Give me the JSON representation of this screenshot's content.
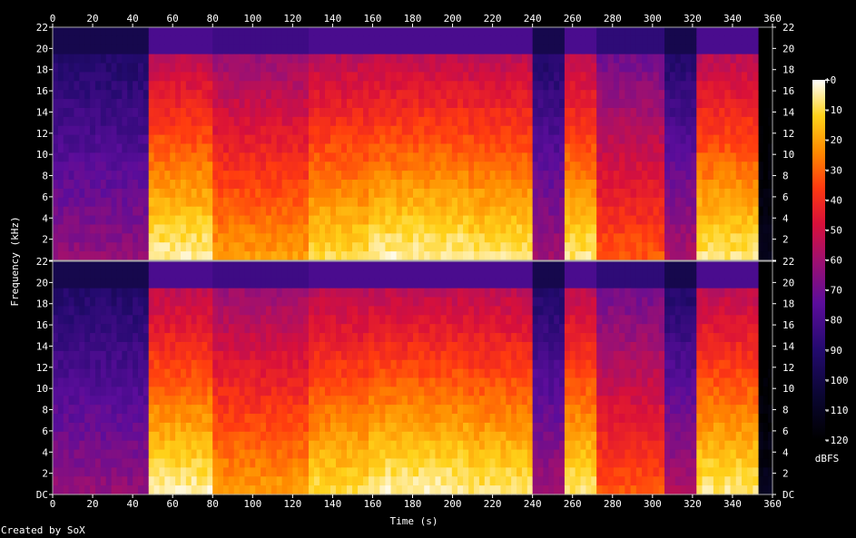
{
  "chart_data": {
    "type": "heatmap",
    "title": "",
    "xlabel": "Time (s)",
    "ylabel": "Frequency (kHz)",
    "xlim": [
      0,
      360
    ],
    "ylim": [
      0,
      22
    ],
    "x_ticks": [
      "0",
      "20",
      "40",
      "60",
      "80",
      "100",
      "120",
      "140",
      "160",
      "180",
      "200",
      "220",
      "240",
      "260",
      "280",
      "300",
      "320",
      "340",
      "360"
    ],
    "y_ticks": [
      "DC",
      "2",
      "4",
      "6",
      "8",
      "10",
      "12",
      "14",
      "16",
      "18",
      "20",
      "22"
    ],
    "channels": 2,
    "colorbar": {
      "label": "dBFS",
      "range": [
        -120,
        0
      ],
      "ticks": [
        "+0",
        "-10",
        "-20",
        "-30",
        "-40",
        "-50",
        "-60",
        "-70",
        "-80",
        "-90",
        "-100",
        "-110",
        "-120"
      ]
    },
    "segments": [
      {
        "start": 0,
        "end": 48,
        "level": "quiet",
        "low_boost": 0.35
      },
      {
        "start": 48,
        "end": 80,
        "level": "loud",
        "low_boost": 0.8
      },
      {
        "start": 80,
        "end": 128,
        "level": "loud-dark",
        "low_boost": 0.6
      },
      {
        "start": 128,
        "end": 158,
        "level": "loud",
        "low_boost": 0.7
      },
      {
        "start": 158,
        "end": 208,
        "level": "loud",
        "low_boost": 0.8
      },
      {
        "start": 208,
        "end": 240,
        "level": "loud",
        "low_boost": 0.75
      },
      {
        "start": 240,
        "end": 256,
        "level": "quiet",
        "low_boost": 0.4
      },
      {
        "start": 256,
        "end": 272,
        "level": "loud",
        "low_boost": 0.75
      },
      {
        "start": 272,
        "end": 306,
        "level": "mid",
        "low_boost": 0.55
      },
      {
        "start": 306,
        "end": 322,
        "level": "quiet",
        "low_boost": 0.45
      },
      {
        "start": 322,
        "end": 353,
        "level": "loud",
        "low_boost": 0.75
      },
      {
        "start": 353,
        "end": 360,
        "level": "silent",
        "low_boost": 0.05
      }
    ]
  },
  "footer": {
    "credit": "Created by SoX"
  },
  "colors": {
    "background": "#000000",
    "text": "#ffffff"
  }
}
